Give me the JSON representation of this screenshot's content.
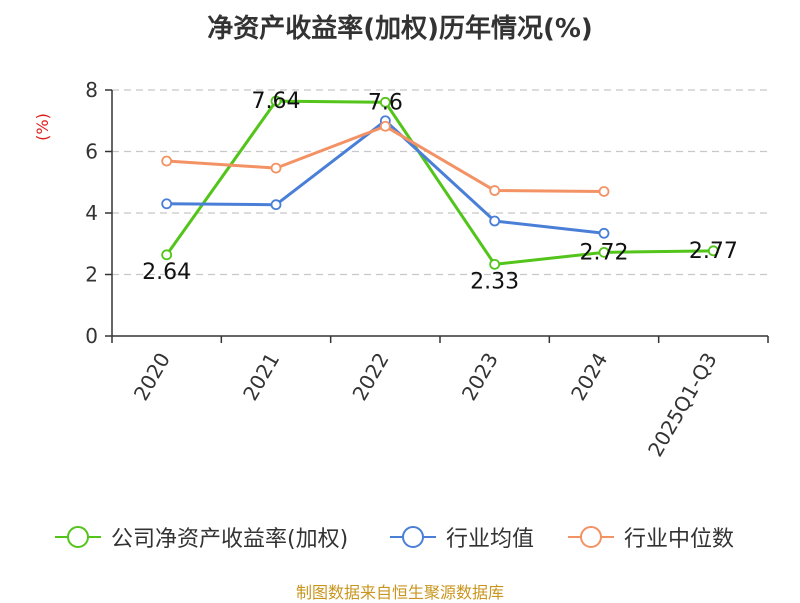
{
  "chart_data": {
    "type": "line",
    "title": "净资产收益率(加权)历年情况(%)",
    "ylabel": "(%)",
    "ylim": [
      0,
      8
    ],
    "yticks": [
      0,
      2,
      4,
      6,
      8
    ],
    "grid": true,
    "legend_position": "bottom",
    "categories": [
      "2020",
      "2021",
      "2022",
      "2023",
      "2024",
      "2025Q1-Q3"
    ],
    "series": [
      {
        "name": "公司净资产收益率(加权)",
        "color": "#52c41a",
        "values": [
          2.64,
          7.64,
          7.6,
          2.33,
          2.72,
          2.77
        ],
        "labels": [
          "2.64",
          "7.64",
          "7.6",
          "2.33",
          "2.72",
          "2.77"
        ]
      },
      {
        "name": "行业均值",
        "color": "#4a7fd8",
        "values": [
          4.3,
          4.27,
          7.0,
          3.74,
          3.34,
          null
        ]
      },
      {
        "name": "行业中位数",
        "color": "#f39264",
        "values": [
          5.69,
          5.46,
          6.82,
          4.73,
          4.7,
          null
        ]
      }
    ]
  },
  "source": "制图数据来自恒生聚源数据库"
}
